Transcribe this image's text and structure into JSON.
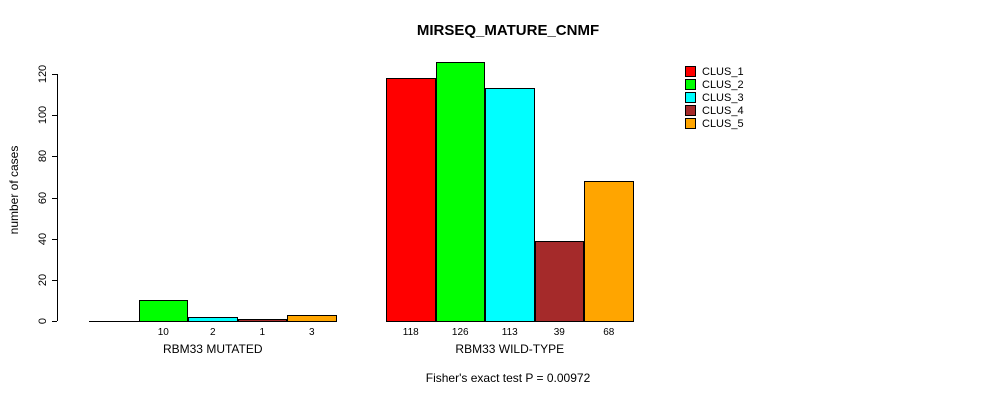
{
  "chart_data": {
    "type": "bar",
    "title": "MIRSEQ_MATURE_CNMF",
    "xlabel": "",
    "ylabel": "number of cases",
    "ylim": [
      0,
      126
    ],
    "yticks": [
      0,
      20,
      40,
      60,
      80,
      100,
      120
    ],
    "grid": false,
    "legend_position": "top-right",
    "legend": [
      {
        "label": "CLUS_1",
        "color": "#FF0000"
      },
      {
        "label": "CLUS_2",
        "color": "#00FF00"
      },
      {
        "label": "CLUS_3",
        "color": "#00FFFF"
      },
      {
        "label": "CLUS_4",
        "color": "#A52A2A"
      },
      {
        "label": "CLUS_5",
        "color": "#FFA500"
      }
    ],
    "series_colors": [
      "#FF0000",
      "#00FF00",
      "#00FFFF",
      "#A52A2A",
      "#FFA500"
    ],
    "groups": [
      {
        "label": "RBM33 MUTATED",
        "values": [
          0,
          10,
          2,
          1,
          3
        ],
        "bar_labels": [
          "",
          "10",
          "2",
          "1",
          "3"
        ]
      },
      {
        "label": "RBM33 WILD-TYPE",
        "values": [
          118,
          126,
          113,
          39,
          68
        ],
        "bar_labels": [
          "118",
          "126",
          "113",
          "39",
          "68"
        ]
      }
    ],
    "annotation": "Fisher's exact test P = 0.00972"
  },
  "colors": {
    "background": "#FFFFFF",
    "axis": "#000000",
    "text": "#000000"
  }
}
